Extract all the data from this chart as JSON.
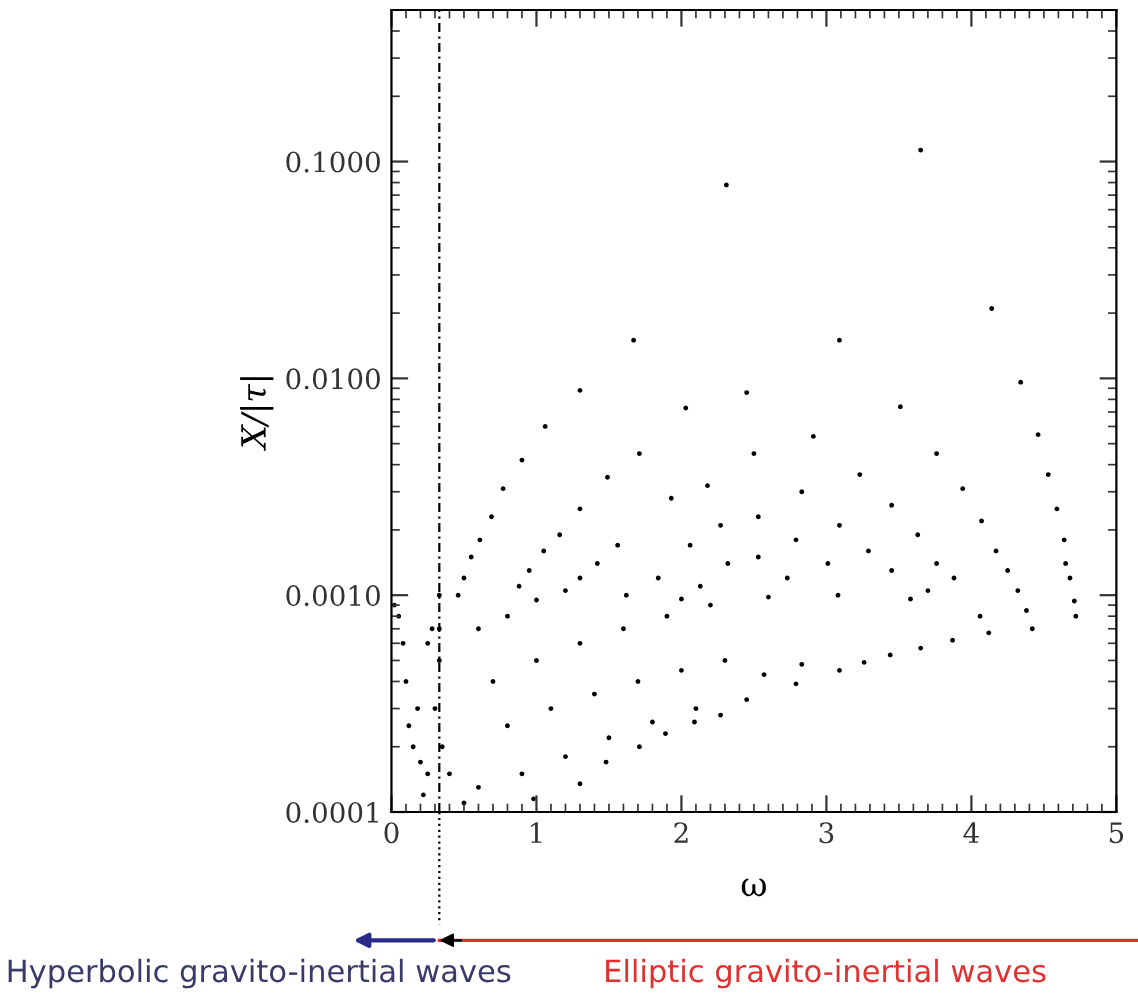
{
  "chart_data": {
    "type": "scatter",
    "xlabel": "ω",
    "ylabel": "X/|τ|",
    "log": "y",
    "grid": false,
    "legend": false,
    "marker": "circle",
    "xlim": [
      0,
      5
    ],
    "xticks": [
      0,
      1,
      2,
      3,
      4,
      5
    ],
    "ylim": [
      0.0001,
      0.5
    ],
    "yticks": [
      {
        "value": 0.0001,
        "label": "0.0001"
      },
      {
        "value": 0.001,
        "label": "0.0010"
      },
      {
        "value": 0.01,
        "label": "0.0100"
      },
      {
        "value": 0.1,
        "label": "0.1000"
      }
    ],
    "ref_lines": [
      {
        "axis": "x",
        "value": 0.33,
        "line_style": "dashed",
        "color": "#000000"
      }
    ],
    "annotations": [
      "Hyperbolic gravito-inertial waves",
      "Elliptic gravito-inertial waves"
    ],
    "series": [
      {
        "color": "#000000",
        "x": [
          3.65,
          2.31,
          4.14,
          3.09,
          1.67,
          4.34,
          1.3,
          2.45,
          2.03,
          3.51,
          1.06,
          4.46,
          2.91,
          0.9,
          1.71,
          2.5,
          3.76,
          0.77,
          0.69,
          0.61,
          0.55,
          0.5,
          0.46,
          1.49,
          2.18,
          3.23,
          4.53,
          3.94,
          2.83,
          1.93,
          1.3,
          4.59,
          3.45,
          2.53,
          1.16,
          2.27,
          3.09,
          4.07,
          4.64,
          3.63,
          2.79,
          2.06,
          1.56,
          1.05,
          2.53,
          4.17,
          3.29,
          4.65,
          3.76,
          3.01,
          1.42,
          2.32,
          0.95,
          4.25,
          3.45,
          1.84,
          4.68,
          3.88,
          2.73,
          1.3,
          2.13,
          4.32,
          3.7,
          4.71,
          3.08,
          3.58,
          2.6,
          2.0,
          1.62,
          0.88,
          4.72,
          4.42,
          4.38,
          4.06,
          4.12,
          3.87,
          3.44,
          3.65,
          3.09,
          2.83,
          3.26,
          2.57,
          2.79,
          2.45,
          2.27,
          2.09,
          1.89,
          1.71,
          1.48,
          1.3,
          0.98,
          0.6,
          0.8,
          1.0,
          1.2,
          0.7,
          1.0,
          1.3,
          1.6,
          1.9,
          2.2,
          0.8,
          1.1,
          1.4,
          1.7,
          2.0,
          2.3,
          0.6,
          0.9,
          1.2,
          1.5,
          1.8,
          2.1,
          0.02,
          0.05,
          0.08,
          0.1,
          0.12,
          0.15,
          0.2,
          0.25,
          0.3,
          0.25,
          0.28,
          0.18,
          0.22,
          0.35,
          0.4,
          0.5,
          0.33,
          0.33,
          0.33
        ],
        "values": [
          0.113,
          0.078,
          0.021,
          0.015,
          0.015,
          0.0096,
          0.0088,
          0.0086,
          0.0073,
          0.0074,
          0.006,
          0.0055,
          0.0054,
          0.0042,
          0.0045,
          0.0045,
          0.0045,
          0.0031,
          0.0023,
          0.0018,
          0.0015,
          0.0012,
          0.001,
          0.0035,
          0.0032,
          0.0036,
          0.0036,
          0.0031,
          0.003,
          0.0028,
          0.0025,
          0.0025,
          0.0026,
          0.0023,
          0.0019,
          0.0021,
          0.0021,
          0.0022,
          0.0018,
          0.0019,
          0.0018,
          0.0017,
          0.0017,
          0.0016,
          0.0015,
          0.0016,
          0.0016,
          0.0014,
          0.0014,
          0.0014,
          0.0014,
          0.0014,
          0.0013,
          0.0013,
          0.0013,
          0.0012,
          0.0012,
          0.0012,
          0.0012,
          0.0012,
          0.0011,
          0.00105,
          0.00105,
          0.00094,
          0.001,
          0.00096,
          0.00098,
          0.00096,
          0.001,
          0.0011,
          0.0008,
          0.0007,
          0.00085,
          0.0008,
          0.00067,
          0.00062,
          0.00053,
          0.00057,
          0.00045,
          0.00048,
          0.00049,
          0.00043,
          0.00039,
          0.00033,
          0.00028,
          0.00026,
          0.00023,
          0.0002,
          0.00017,
          0.000135,
          0.000115,
          0.0007,
          0.0008,
          0.00095,
          0.00105,
          0.0004,
          0.0005,
          0.0006,
          0.0007,
          0.0008,
          0.0009,
          0.00025,
          0.0003,
          0.00035,
          0.0004,
          0.00045,
          0.0005,
          0.00013,
          0.00015,
          0.00018,
          0.00022,
          0.00026,
          0.0003,
          0.0009,
          0.0008,
          0.0006,
          0.0004,
          0.00025,
          0.0002,
          0.00017,
          0.00015,
          0.0003,
          0.0006,
          0.0007,
          0.0003,
          0.00012,
          0.0002,
          0.00015,
          0.00011,
          0.001,
          0.0007,
          0.0005
        ]
      }
    ]
  }
}
